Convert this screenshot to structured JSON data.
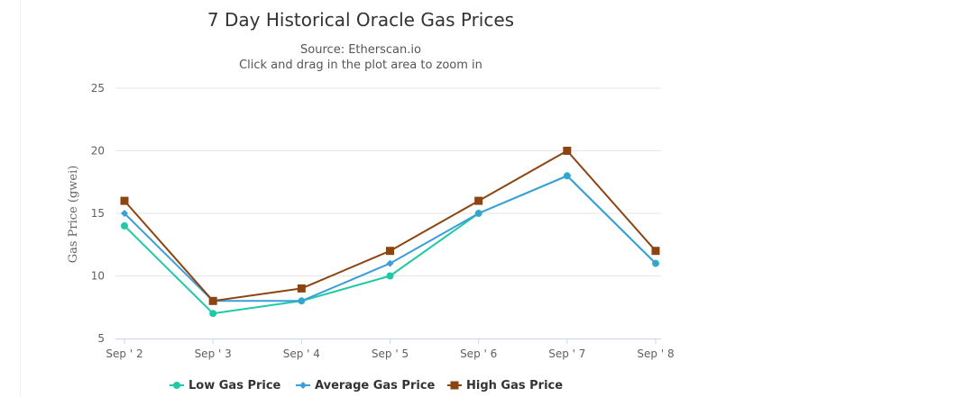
{
  "chart_data": {
    "type": "line",
    "title": "7 Day Historical Oracle Gas Prices",
    "subtitle": "Source: Etherscan.io",
    "subtitle2": "Click and drag in the plot area to zoom in",
    "xlabel": "",
    "ylabel": "Gas Price (gwei)",
    "categories": [
      "Sep ' 2",
      "Sep ' 3",
      "Sep ' 4",
      "Sep ' 5",
      "Sep ' 6",
      "Sep ' 7",
      "Sep ' 8"
    ],
    "ylim": [
      5,
      25
    ],
    "yticks": [
      "5",
      "10",
      "15",
      "20",
      "25"
    ],
    "grid": true,
    "legend_position": "bottom",
    "series": [
      {
        "name": "Low Gas Price",
        "color": "#1fc9a6",
        "marker": "circle",
        "values": [
          14,
          7,
          8,
          10,
          15,
          18,
          11
        ]
      },
      {
        "name": "Average Gas Price",
        "color": "#3a9fd8",
        "marker": "diamond",
        "values": [
          15,
          8,
          8,
          11,
          15,
          18,
          11
        ]
      },
      {
        "name": "High Gas Price",
        "color": "#8b4513",
        "marker": "square",
        "values": [
          16,
          8,
          9,
          12,
          16,
          20,
          12
        ]
      }
    ]
  }
}
